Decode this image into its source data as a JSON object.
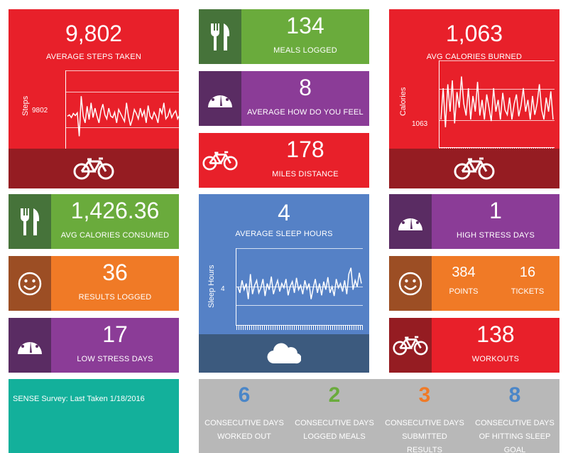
{
  "steps": {
    "value": "9,802",
    "label": "AVERAGE STEPS TAKEN",
    "axis_title": "Steps",
    "axis_value": "9802",
    "series": [
      40,
      42,
      38,
      44,
      41,
      45,
      10,
      70,
      40,
      30,
      55,
      35,
      60,
      38,
      52,
      40,
      30,
      48,
      58,
      42,
      36,
      52,
      40,
      38,
      46,
      30,
      50,
      44,
      38,
      32,
      60,
      40,
      26,
      36,
      50,
      44,
      36,
      52,
      40,
      48,
      30,
      56,
      40,
      36,
      46,
      40,
      30,
      52,
      44,
      60,
      36,
      40,
      50,
      38,
      44,
      48,
      36,
      42
    ]
  },
  "meals": {
    "value": "134",
    "label": "MEALS LOGGED"
  },
  "feel": {
    "value": "8",
    "label": "AVERAGE HOW DO YOU FEEL"
  },
  "miles": {
    "value": "178",
    "label": "MILES DISTANCE"
  },
  "burned": {
    "value": "1,063",
    "label": "AVG CALORIES BURNED",
    "axis_title": "Calories",
    "axis_value": "1063",
    "series": [
      30,
      70,
      20,
      75,
      40,
      80,
      25,
      65,
      45,
      85,
      50,
      35,
      70,
      30,
      60,
      40,
      78,
      35,
      55,
      30,
      62,
      45,
      28,
      70,
      40,
      55,
      30,
      64,
      42,
      36,
      58,
      30,
      50,
      62,
      34,
      48,
      70,
      40,
      55,
      30,
      60,
      36,
      50,
      75,
      42,
      30,
      58,
      40,
      66,
      30
    ]
  },
  "consumed": {
    "value": "1,426.36",
    "label": "AVG CALORIES CONSUMED"
  },
  "sleep": {
    "value": "4",
    "label": "AVERAGE SLEEP HOURS",
    "axis_title": "Sleep Hours",
    "axis_value": "4",
    "series": [
      50,
      40,
      60,
      45,
      55,
      30,
      70,
      38,
      52,
      60,
      40,
      48,
      62,
      35,
      55,
      45,
      66,
      38,
      50,
      60,
      42,
      55,
      48,
      62,
      36,
      50,
      58,
      40,
      64,
      45,
      52,
      38,
      60,
      46,
      55,
      30,
      48,
      62,
      40,
      55,
      36,
      58,
      45,
      65,
      40,
      50,
      35,
      62,
      48,
      55,
      42,
      60,
      38,
      70,
      80,
      45,
      60,
      50,
      72,
      55
    ]
  },
  "stress_high": {
    "value": "1",
    "label": "HIGH STRESS DAYS"
  },
  "results": {
    "value": "36",
    "label": "RESULTS LOGGED"
  },
  "rewards": {
    "points_value": "384",
    "points_label": "POINTS",
    "tickets_value": "16",
    "tickets_label": "TICKETS"
  },
  "stress_low": {
    "value": "17",
    "label": "LOW STRESS DAYS"
  },
  "workouts": {
    "value": "138",
    "label": "WORKOUTS"
  },
  "survey": {
    "text": "SENSE Survey: Last Taken 1/18/2016"
  },
  "consecutive": [
    {
      "value": "6",
      "label": "CONSECUTIVE DAYS WORKED OUT",
      "color": "#4a86c8"
    },
    {
      "value": "2",
      "label": "CONSECUTIVE DAYS LOGGED MEALS",
      "color": "#6aab3c"
    },
    {
      "value": "3",
      "label": "CONSECUTIVE DAYS SUBMITTED RESULTS",
      "color": "#f07a26"
    },
    {
      "value": "8",
      "label": "CONSECUTIVE DAYS OF HITTING SLEEP GOAL",
      "color": "#4a86c8"
    }
  ],
  "icons": {
    "bike": "bicycle-icon",
    "utensils": "fork-knife-icon",
    "gauge": "speedometer-icon",
    "smile": "smiley-icon",
    "cloud": "cloud-icon"
  },
  "colors": {
    "red": "#e8202a",
    "dark_red": "#951c22",
    "green": "#6aab3c",
    "dark_green": "#46733a",
    "purple": "#8b3c97",
    "dark_purple": "#5a2c63",
    "orange": "#f07a26",
    "dark_orange": "#9c4e24",
    "blue": "#5581c6",
    "dark_blue": "#3c5a7e",
    "teal": "#13b09b",
    "gray": "#b8b8b8"
  }
}
